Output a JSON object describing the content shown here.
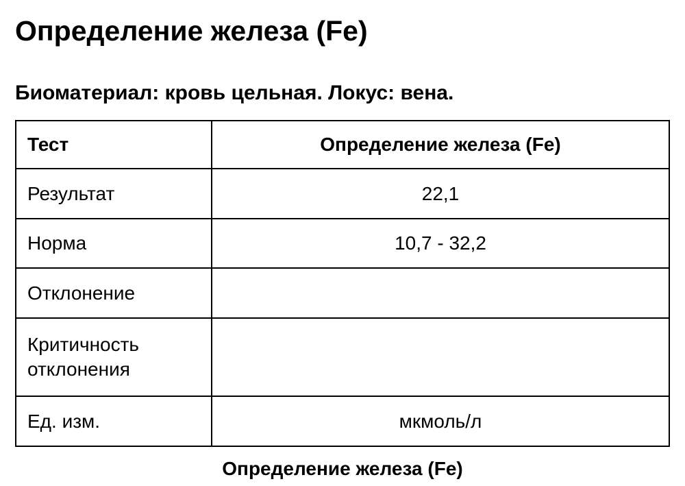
{
  "title": "Определение железа (Fe)",
  "subtitle": "Биоматериал: кровь цельная. Локус: вена.",
  "table": {
    "header": {
      "label": "Тест",
      "value": "Определение железа (Fe)"
    },
    "rows": [
      {
        "label": "Результат",
        "value": "22,1"
      },
      {
        "label": "Норма",
        "value": "10,7 - 32,2"
      },
      {
        "label": "Отклонение",
        "value": ""
      },
      {
        "label": "Критичность отклонения",
        "value": ""
      },
      {
        "label": "Ед. изм.",
        "value": "мкмоль/л"
      }
    ]
  },
  "caption": "Определение железа (Fe)"
}
